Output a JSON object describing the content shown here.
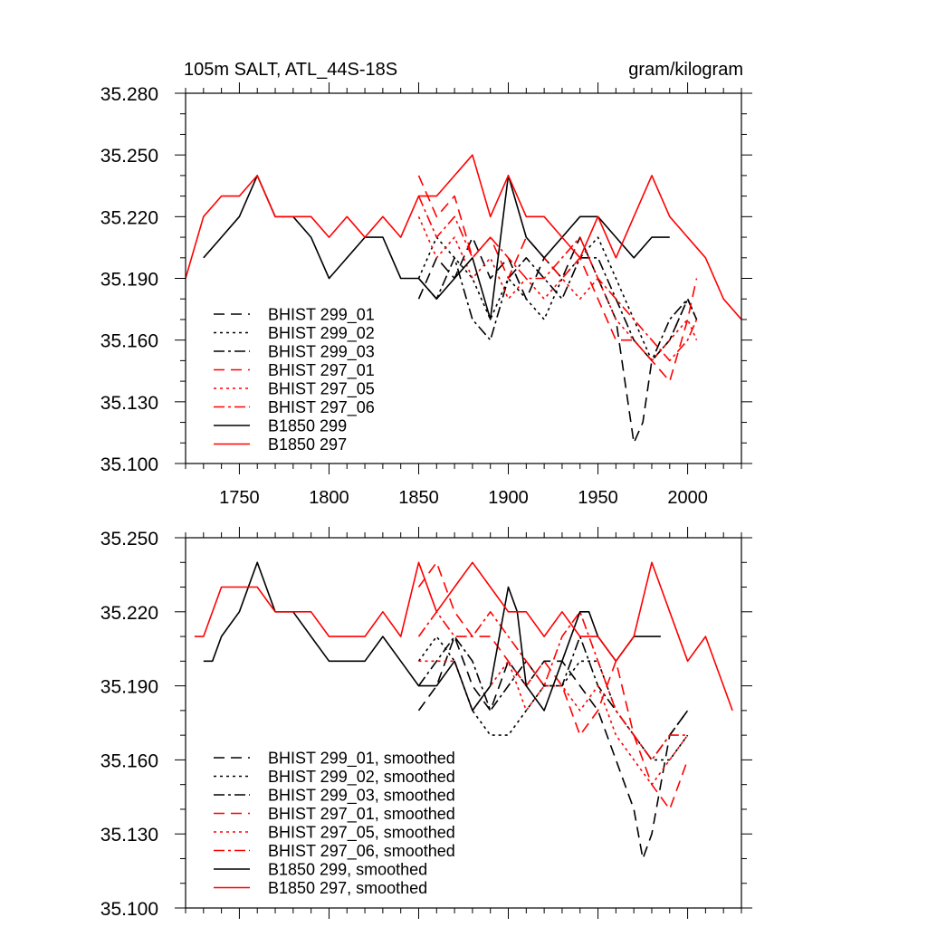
{
  "header": {
    "title": "105m SALT, ATL_44S-18S",
    "units": "gram/kilogram"
  },
  "chart_data": [
    {
      "type": "line",
      "xlim": [
        1720,
        2030
      ],
      "ylim": [
        35.1,
        35.28
      ],
      "xticks": [
        1750,
        1800,
        1850,
        1900,
        1950,
        2000
      ],
      "yticks": [
        35.1,
        35.13,
        35.16,
        35.19,
        35.22,
        35.25,
        35.28
      ],
      "ytick_labels": [
        "35.100",
        "35.130",
        "35.160",
        "35.190",
        "35.220",
        "35.250",
        "35.280"
      ],
      "legend_position": "bottom-left",
      "series": [
        {
          "name": "BHIST 299_01",
          "color": "#000000",
          "dash": "dash",
          "x": [
            1850,
            1860,
            1870,
            1880,
            1890,
            1900,
            1910,
            1920,
            1930,
            1940,
            1950,
            1960,
            1970,
            1975,
            1980,
            1990,
            2000,
            2005
          ],
          "y": [
            35.18,
            35.2,
            35.19,
            35.21,
            35.19,
            35.2,
            35.18,
            35.2,
            35.19,
            35.21,
            35.19,
            35.17,
            35.11,
            35.12,
            35.15,
            35.16,
            35.18,
            35.17
          ]
        },
        {
          "name": "BHIST 299_02",
          "color": "#000000",
          "dash": "dot",
          "x": [
            1850,
            1860,
            1870,
            1880,
            1890,
            1900,
            1910,
            1920,
            1930,
            1940,
            1950,
            1960,
            1970,
            1980,
            1990,
            2000,
            2005
          ],
          "y": [
            35.19,
            35.21,
            35.2,
            35.19,
            35.17,
            35.19,
            35.18,
            35.17,
            35.19,
            35.2,
            35.21,
            35.19,
            35.17,
            35.15,
            35.16,
            35.18,
            35.17
          ]
        },
        {
          "name": "BHIST 299_03",
          "color": "#000000",
          "dash": "dashdot",
          "x": [
            1850,
            1860,
            1870,
            1880,
            1890,
            1900,
            1910,
            1920,
            1930,
            1940,
            1950,
            1960,
            1970,
            1980,
            1990,
            2000,
            2005
          ],
          "y": [
            35.19,
            35.18,
            35.2,
            35.17,
            35.16,
            35.19,
            35.2,
            35.19,
            35.18,
            35.2,
            35.2,
            35.18,
            35.16,
            35.15,
            35.17,
            35.18,
            35.17
          ]
        },
        {
          "name": "BHIST 297_01",
          "color": "#ff0000",
          "dash": "dash",
          "x": [
            1850,
            1860,
            1870,
            1880,
            1890,
            1900,
            1910,
            1920,
            1930,
            1940,
            1950,
            1960,
            1970,
            1980,
            1990,
            2000,
            2005
          ],
          "y": [
            35.24,
            35.22,
            35.23,
            35.2,
            35.21,
            35.19,
            35.21,
            35.2,
            35.19,
            35.2,
            35.18,
            35.16,
            35.16,
            35.15,
            35.14,
            35.17,
            35.19
          ]
        },
        {
          "name": "BHIST 297_05",
          "color": "#ff0000",
          "dash": "dot",
          "x": [
            1850,
            1860,
            1870,
            1880,
            1890,
            1900,
            1910,
            1920,
            1930,
            1940,
            1950,
            1960,
            1970,
            1980,
            1990,
            2000,
            2005
          ],
          "y": [
            35.22,
            35.2,
            35.21,
            35.19,
            35.2,
            35.18,
            35.19,
            35.18,
            35.19,
            35.18,
            35.19,
            35.17,
            35.16,
            35.15,
            35.16,
            35.17,
            35.16
          ]
        },
        {
          "name": "BHIST 297_06",
          "color": "#ff0000",
          "dash": "dashdot",
          "x": [
            1850,
            1860,
            1870,
            1880,
            1890,
            1900,
            1910,
            1920,
            1930,
            1940,
            1950,
            1960,
            1970,
            1980,
            1990,
            2000,
            2005
          ],
          "y": [
            35.23,
            35.21,
            35.22,
            35.2,
            35.21,
            35.2,
            35.19,
            35.19,
            35.2,
            35.21,
            35.19,
            35.18,
            35.17,
            35.16,
            35.15,
            35.16,
            35.17
          ]
        },
        {
          "name": "B1850 299",
          "color": "#000000",
          "dash": "solid",
          "x": [
            1730,
            1740,
            1750,
            1760,
            1770,
            1780,
            1790,
            1800,
            1810,
            1820,
            1830,
            1840,
            1850,
            1860,
            1870,
            1880,
            1890,
            1900,
            1910,
            1920,
            1930,
            1940,
            1950,
            1960,
            1970,
            1980,
            1990
          ],
          "y": [
            35.2,
            35.21,
            35.22,
            35.24,
            35.22,
            35.22,
            35.21,
            35.19,
            35.2,
            35.21,
            35.21,
            35.19,
            35.19,
            35.18,
            35.19,
            35.2,
            35.17,
            35.24,
            35.21,
            35.2,
            35.21,
            35.22,
            35.22,
            35.21,
            35.2,
            35.21,
            35.21
          ]
        },
        {
          "name": "B1850 297",
          "color": "#ff0000",
          "dash": "solid",
          "x": [
            1720,
            1730,
            1740,
            1750,
            1760,
            1770,
            1780,
            1790,
            1800,
            1810,
            1820,
            1830,
            1840,
            1850,
            1860,
            1870,
            1880,
            1890,
            1900,
            1910,
            1920,
            1930,
            1940,
            1950,
            1960,
            1970,
            1980,
            1990,
            2000,
            2010,
            2020,
            2030
          ],
          "y": [
            35.19,
            35.22,
            35.23,
            35.23,
            35.24,
            35.22,
            35.22,
            35.22,
            35.21,
            35.22,
            35.21,
            35.22,
            35.21,
            35.23,
            35.23,
            35.24,
            35.25,
            35.22,
            35.24,
            35.22,
            35.22,
            35.21,
            35.2,
            35.22,
            35.2,
            35.22,
            35.24,
            35.22,
            35.21,
            35.2,
            35.18,
            35.17
          ]
        }
      ]
    },
    {
      "type": "line",
      "xlim": [
        1720,
        2030
      ],
      "ylim": [
        35.1,
        35.25
      ],
      "xticks": [
        1750,
        1800,
        1850,
        1900,
        1950,
        2000
      ],
      "yticks": [
        35.1,
        35.13,
        35.16,
        35.19,
        35.22,
        35.25
      ],
      "ytick_labels": [
        "35.100",
        "35.130",
        "35.160",
        "35.190",
        "35.220",
        "35.250"
      ],
      "legend_position": "bottom-left",
      "series": [
        {
          "name": "BHIST 299_01, smoothed",
          "color": "#000000",
          "dash": "dash",
          "x": [
            1850,
            1860,
            1870,
            1880,
            1890,
            1900,
            1910,
            1920,
            1930,
            1940,
            1950,
            1960,
            1965,
            1970,
            1975,
            1980,
            1985,
            1990,
            2000
          ],
          "y": [
            35.18,
            35.19,
            35.21,
            35.19,
            35.18,
            35.2,
            35.19,
            35.2,
            35.2,
            35.19,
            35.18,
            35.16,
            35.15,
            35.14,
            35.12,
            35.13,
            35.15,
            35.17,
            35.18
          ]
        },
        {
          "name": "BHIST 299_02, smoothed",
          "color": "#000000",
          "dash": "dot",
          "x": [
            1850,
            1860,
            1870,
            1880,
            1890,
            1900,
            1910,
            1920,
            1930,
            1940,
            1950,
            1960,
            1970,
            1980,
            1990,
            2000
          ],
          "y": [
            35.2,
            35.21,
            35.2,
            35.18,
            35.17,
            35.17,
            35.18,
            35.19,
            35.19,
            35.2,
            35.2,
            35.18,
            35.17,
            35.16,
            35.16,
            35.17
          ]
        },
        {
          "name": "BHIST 299_03, smoothed",
          "color": "#000000",
          "dash": "dashdot",
          "x": [
            1850,
            1860,
            1870,
            1880,
            1890,
            1900,
            1910,
            1920,
            1930,
            1940,
            1950,
            1960,
            1970,
            1980,
            1990,
            2000
          ],
          "y": [
            35.19,
            35.2,
            35.21,
            35.2,
            35.18,
            35.19,
            35.2,
            35.19,
            35.19,
            35.21,
            35.19,
            35.18,
            35.17,
            35.16,
            35.17,
            35.18
          ]
        },
        {
          "name": "BHIST 297_01, smoothed",
          "color": "#ff0000",
          "dash": "dash",
          "x": [
            1850,
            1860,
            1870,
            1880,
            1890,
            1900,
            1910,
            1920,
            1930,
            1940,
            1950,
            1960,
            1970,
            1980,
            1990,
            2000
          ],
          "y": [
            35.23,
            35.24,
            35.22,
            35.21,
            35.21,
            35.2,
            35.19,
            35.2,
            35.19,
            35.17,
            35.18,
            35.2,
            35.17,
            35.15,
            35.14,
            35.16
          ]
        },
        {
          "name": "BHIST 297_05, smoothed",
          "color": "#ff0000",
          "dash": "dot",
          "x": [
            1850,
            1860,
            1870,
            1880,
            1890,
            1900,
            1910,
            1920,
            1930,
            1940,
            1950,
            1960,
            1970,
            1980,
            1990,
            2000
          ],
          "y": [
            35.2,
            35.2,
            35.2,
            35.18,
            35.19,
            35.2,
            35.18,
            35.19,
            35.19,
            35.18,
            35.19,
            35.17,
            35.16,
            35.15,
            35.16,
            35.17
          ]
        },
        {
          "name": "BHIST 297_06, smoothed",
          "color": "#ff0000",
          "dash": "dashdot",
          "x": [
            1850,
            1860,
            1870,
            1880,
            1890,
            1900,
            1910,
            1920,
            1930,
            1940,
            1950,
            1960,
            1970,
            1980,
            1990,
            2000
          ],
          "y": [
            35.21,
            35.22,
            35.21,
            35.21,
            35.22,
            35.21,
            35.2,
            35.19,
            35.21,
            35.22,
            35.2,
            35.18,
            35.17,
            35.16,
            35.17,
            35.17
          ]
        },
        {
          "name": "B1850 299, smoothed",
          "color": "#000000",
          "dash": "solid",
          "x": [
            1730,
            1735,
            1740,
            1750,
            1760,
            1770,
            1780,
            1790,
            1800,
            1810,
            1820,
            1830,
            1840,
            1850,
            1860,
            1870,
            1880,
            1890,
            1900,
            1905,
            1910,
            1920,
            1930,
            1940,
            1945,
            1950,
            1960,
            1970,
            1975,
            1980,
            1985
          ],
          "y": [
            35.2,
            35.2,
            35.21,
            35.22,
            35.24,
            35.22,
            35.22,
            35.21,
            35.2,
            35.2,
            35.2,
            35.21,
            35.2,
            35.19,
            35.19,
            35.2,
            35.18,
            35.19,
            35.23,
            35.22,
            35.19,
            35.18,
            35.2,
            35.22,
            35.22,
            35.21,
            35.2,
            35.21,
            35.21,
            35.21,
            35.21
          ]
        },
        {
          "name": "B1850 297, smoothed",
          "color": "#ff0000",
          "dash": "solid",
          "x": [
            1725,
            1730,
            1740,
            1750,
            1760,
            1770,
            1780,
            1790,
            1800,
            1810,
            1820,
            1830,
            1840,
            1850,
            1860,
            1870,
            1880,
            1890,
            1900,
            1910,
            1920,
            1930,
            1940,
            1950,
            1960,
            1970,
            1980,
            1990,
            2000,
            2010,
            2020,
            2025
          ],
          "y": [
            35.21,
            35.21,
            35.23,
            35.23,
            35.23,
            35.22,
            35.22,
            35.22,
            35.21,
            35.21,
            35.21,
            35.22,
            35.21,
            35.24,
            35.22,
            35.23,
            35.24,
            35.23,
            35.22,
            35.22,
            35.21,
            35.22,
            35.21,
            35.21,
            35.2,
            35.21,
            35.24,
            35.22,
            35.2,
            35.21,
            35.19,
            35.18
          ]
        }
      ]
    }
  ]
}
